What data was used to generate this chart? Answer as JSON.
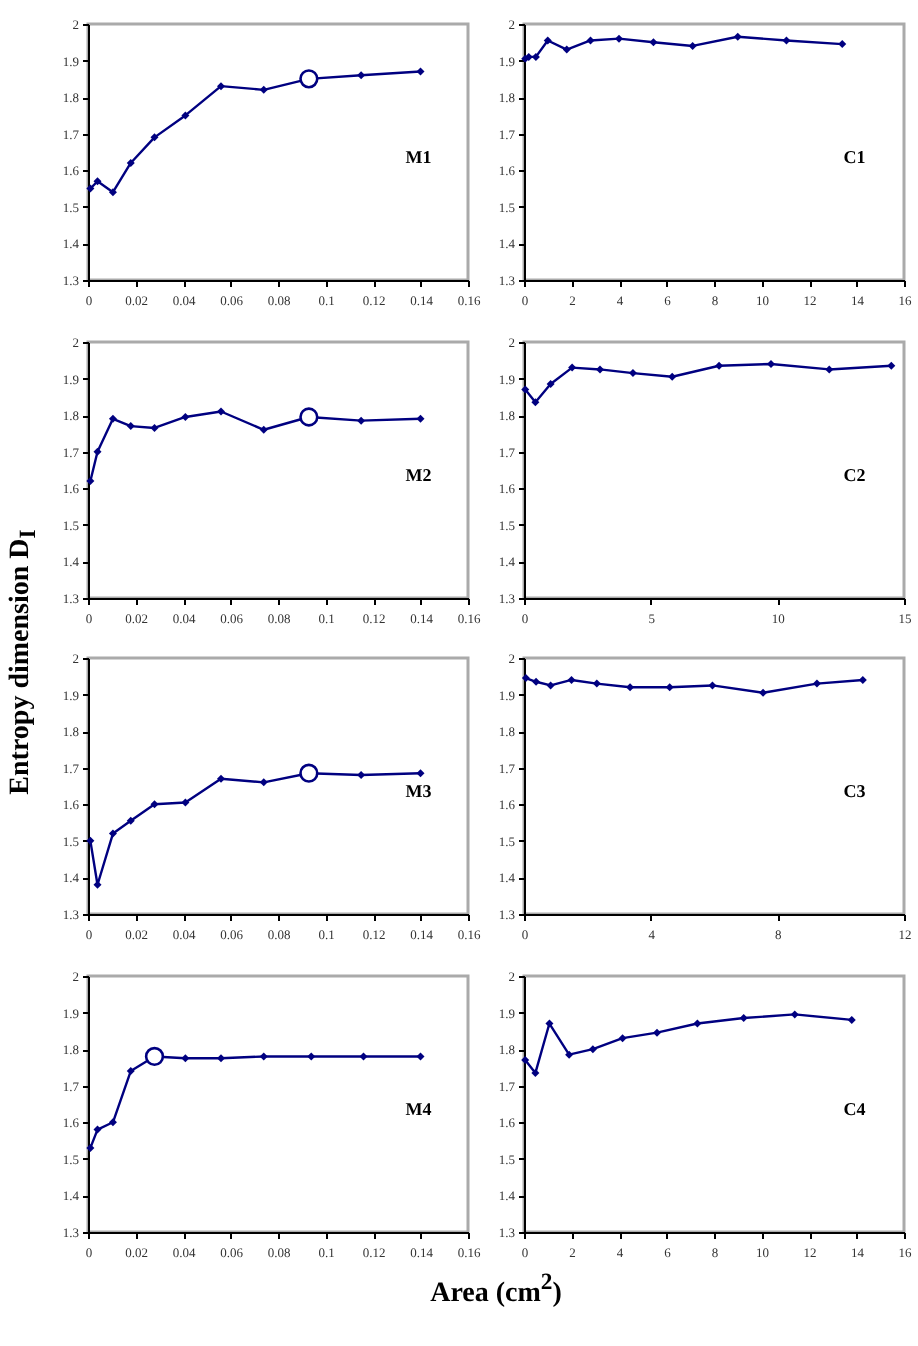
{
  "chart_data": [
    {
      "type": "line",
      "annotations": [
        "M1"
      ],
      "marker": "diamond",
      "xlim": [
        0,
        0.16
      ],
      "xticks": [
        0,
        0.02,
        0.04,
        0.06,
        0.08,
        0.1,
        0.12,
        0.14,
        0.16
      ],
      "ylim": [
        1.3,
        2
      ],
      "yticks": [
        1.3,
        1.4,
        1.5,
        1.6,
        1.7,
        1.8,
        1.9,
        2
      ],
      "series": [
        {
          "color": "#000080",
          "x": [
            0.001,
            0.004,
            0.0105,
            0.018,
            0.028,
            0.041,
            0.056,
            0.074,
            0.093,
            0.115,
            0.14
          ],
          "values": [
            1.55,
            1.57,
            1.54,
            1.62,
            1.69,
            1.75,
            1.83,
            1.82,
            1.85,
            1.86,
            1.87
          ]
        },
        {
          "type": "scatter",
          "marker": "circle",
          "color": "#000080",
          "x": [
            0.093
          ],
          "values": [
            1.85
          ]
        }
      ]
    },
    {
      "type": "line",
      "annotations": [
        "C1"
      ],
      "marker": "diamond",
      "xlim": [
        0,
        16
      ],
      "xticks": [
        0,
        2,
        4,
        6,
        8,
        10,
        12,
        14,
        16
      ],
      "ylim": [
        1.3,
        2
      ],
      "yticks": [
        1.3,
        1.4,
        1.5,
        1.6,
        1.7,
        1.8,
        1.9,
        2
      ],
      "series": [
        {
          "color": "#000080",
          "x": [
            0.05,
            0.2,
            0.5,
            1.0,
            1.8,
            2.8,
            4.0,
            5.45,
            7.1,
            9.0,
            11.05,
            13.4
          ],
          "values": [
            1.905,
            1.91,
            1.91,
            1.955,
            1.93,
            1.955,
            1.96,
            1.95,
            1.94,
            1.965,
            1.955,
            1.945
          ]
        }
      ]
    },
    {
      "type": "line",
      "annotations": [
        "M2"
      ],
      "marker": "diamond",
      "xlim": [
        0,
        0.16
      ],
      "xticks": [
        0,
        0.02,
        0.04,
        0.06,
        0.08,
        0.1,
        0.12,
        0.14,
        0.16
      ],
      "ylim": [
        1.3,
        2
      ],
      "yticks": [
        1.3,
        1.4,
        1.5,
        1.6,
        1.7,
        1.8,
        1.9,
        2
      ],
      "series": [
        {
          "color": "#000080",
          "x": [
            0.001,
            0.004,
            0.0105,
            0.018,
            0.028,
            0.041,
            0.056,
            0.074,
            0.093,
            0.115,
            0.14
          ],
          "values": [
            1.62,
            1.7,
            1.79,
            1.77,
            1.765,
            1.795,
            1.81,
            1.76,
            1.795,
            1.785,
            1.79
          ]
        },
        {
          "type": "scatter",
          "marker": "circle",
          "color": "#000080",
          "x": [
            0.093
          ],
          "values": [
            1.795
          ]
        }
      ]
    },
    {
      "type": "line",
      "annotations": [
        "C2"
      ],
      "marker": "diamond",
      "xlim": [
        0,
        15
      ],
      "xticks": [
        0,
        5,
        10,
        15
      ],
      "ylim": [
        1.3,
        2
      ],
      "yticks": [
        1.3,
        1.4,
        1.5,
        1.6,
        1.7,
        1.8,
        1.9,
        2
      ],
      "series": [
        {
          "color": "#000080",
          "x": [
            0.05,
            0.45,
            1.05,
            1.9,
            3.0,
            4.3,
            5.85,
            7.7,
            9.75,
            12.05,
            14.5
          ],
          "values": [
            1.87,
            1.835,
            1.885,
            1.93,
            1.925,
            1.915,
            1.905,
            1.935,
            1.94,
            1.925,
            1.935
          ]
        }
      ]
    },
    {
      "type": "line",
      "ylabel": "Entropy dimension D$_{I}$",
      "annotations": [
        "M3"
      ],
      "marker": "diamond",
      "xlim": [
        0,
        0.16
      ],
      "xticks": [
        0,
        0.02,
        0.04,
        0.06,
        0.08,
        0.1,
        0.12,
        0.14,
        0.16
      ],
      "ylim": [
        1.3,
        2
      ],
      "yticks": [
        1.3,
        1.4,
        1.5,
        1.6,
        1.7,
        1.8,
        1.9,
        2
      ],
      "series": [
        {
          "color": "#000080",
          "x": [
            0.001,
            0.004,
            0.0105,
            0.018,
            0.028,
            0.041,
            0.056,
            0.074,
            0.093,
            0.115,
            0.14
          ],
          "values": [
            1.5,
            1.38,
            1.52,
            1.555,
            1.6,
            1.605,
            1.67,
            1.66,
            1.685,
            1.68,
            1.685
          ]
        },
        {
          "type": "scatter",
          "marker": "circle",
          "color": "#000080",
          "x": [
            0.093
          ],
          "values": [
            1.685
          ]
        }
      ]
    },
    {
      "type": "line",
      "annotations": [
        "C3"
      ],
      "marker": "diamond",
      "xlim": [
        0,
        12
      ],
      "xticks": [
        0,
        4,
        8,
        12
      ],
      "ylim": [
        1.3,
        2
      ],
      "yticks": [
        1.3,
        1.4,
        1.5,
        1.6,
        1.7,
        1.8,
        1.9,
        2
      ],
      "series": [
        {
          "color": "#000080",
          "x": [
            0.06,
            0.38,
            0.84,
            1.5,
            2.3,
            3.35,
            4.6,
            5.95,
            7.55,
            9.25,
            10.7
          ],
          "values": [
            1.945,
            1.935,
            1.925,
            1.94,
            1.93,
            1.92,
            1.92,
            1.925,
            1.905,
            1.93,
            1.94
          ]
        }
      ]
    },
    {
      "type": "line",
      "xlabel": "Area (cm$^{2}$)",
      "annotations": [
        "M4"
      ],
      "marker": "diamond",
      "xlim": [
        0,
        0.16
      ],
      "xticks": [
        0,
        0.02,
        0.04,
        0.06,
        0.08,
        0.1,
        0.12,
        0.14,
        0.16
      ],
      "ylim": [
        1.3,
        2
      ],
      "yticks": [
        1.3,
        1.4,
        1.5,
        1.6,
        1.7,
        1.8,
        1.9,
        2
      ],
      "series": [
        {
          "color": "#000080",
          "x": [
            0.001,
            0.004,
            0.0105,
            0.018,
            0.028,
            0.041,
            0.056,
            0.074,
            0.094,
            0.116,
            0.14
          ],
          "values": [
            1.53,
            1.58,
            1.6,
            1.74,
            1.78,
            1.775,
            1.775,
            1.78,
            1.78,
            1.78,
            1.78
          ]
        },
        {
          "type": "scatter",
          "marker": "circle",
          "color": "#000080",
          "x": [
            0.028
          ],
          "values": [
            1.78
          ]
        }
      ]
    },
    {
      "type": "line",
      "annotations": [
        "C4"
      ],
      "marker": "diamond",
      "xlim": [
        0,
        16
      ],
      "xticks": [
        0,
        2,
        4,
        6,
        8,
        10,
        12,
        14,
        16
      ],
      "ylim": [
        1.3,
        2
      ],
      "yticks": [
        1.3,
        1.4,
        1.5,
        1.6,
        1.7,
        1.8,
        1.9,
        2
      ],
      "series": [
        {
          "color": "#000080",
          "x": [
            0.05,
            0.48,
            1.07,
            1.9,
            2.9,
            4.15,
            5.6,
            7.3,
            9.25,
            11.4,
            13.8
          ],
          "values": [
            1.77,
            1.735,
            1.87,
            1.785,
            1.8,
            1.83,
            1.845,
            1.87,
            1.885,
            1.895,
            1.88
          ]
        }
      ]
    }
  ]
}
